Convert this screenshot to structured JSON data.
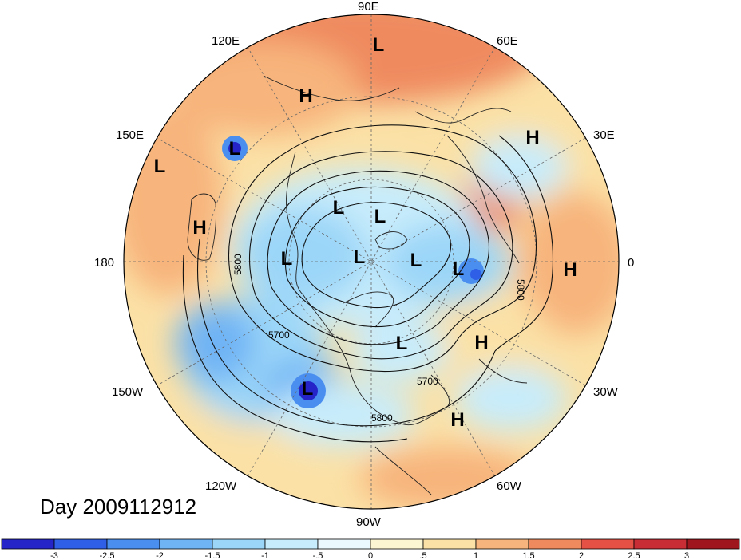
{
  "title": "Day 2009112912",
  "longitude_labels": [
    {
      "text": "90E",
      "lon": 90
    },
    {
      "text": "60E",
      "lon": 60
    },
    {
      "text": "30E",
      "lon": 30
    },
    {
      "text": "0",
      "lon": 0
    },
    {
      "text": "30W",
      "lon": -30
    },
    {
      "text": "60W",
      "lon": -60
    },
    {
      "text": "90W",
      "lon": -90
    },
    {
      "text": "120W",
      "lon": -120
    },
    {
      "text": "150W",
      "lon": -150
    },
    {
      "text": "180",
      "lon": 180
    },
    {
      "text": "150E",
      "lon": 150
    },
    {
      "text": "120E",
      "lon": 120
    }
  ],
  "pressure_centers": [
    {
      "type": "L",
      "label": "L"
    },
    {
      "type": "H",
      "label": "H"
    },
    {
      "type": "L",
      "label": "L"
    },
    {
      "type": "H",
      "label": "H"
    },
    {
      "type": "H",
      "label": "H"
    },
    {
      "type": "L",
      "label": "L"
    },
    {
      "type": "L",
      "label": "L"
    },
    {
      "type": "L",
      "label": "L"
    },
    {
      "type": "L",
      "label": "L"
    },
    {
      "type": "L",
      "label": "L"
    },
    {
      "type": "L",
      "label": "L"
    },
    {
      "type": "L",
      "label": "L"
    },
    {
      "type": "H",
      "label": "H"
    },
    {
      "type": "H",
      "label": "H"
    },
    {
      "type": "L",
      "label": "L"
    },
    {
      "type": "L",
      "label": "L"
    },
    {
      "type": "H",
      "label": "H"
    }
  ],
  "contour_labels": [
    "5800",
    "5700",
    "5700",
    "5800",
    "5800"
  ],
  "colorbar": {
    "ticks": [
      "-3",
      "-2.5",
      "-2",
      "-1.5",
      "-1",
      "-.5",
      "0",
      ".5",
      "1",
      "1.5",
      "2",
      "2.5",
      "3"
    ],
    "colors": [
      "#2424c8",
      "#2e5fe6",
      "#4a8ff0",
      "#6fb4f5",
      "#9bd6f8",
      "#c7ecfb",
      "#ebf8fd",
      "#fdf6d3",
      "#fbe1a6",
      "#f7b47c",
      "#ef8a5e",
      "#e55245",
      "#c82d35",
      "#a0161e"
    ]
  }
}
